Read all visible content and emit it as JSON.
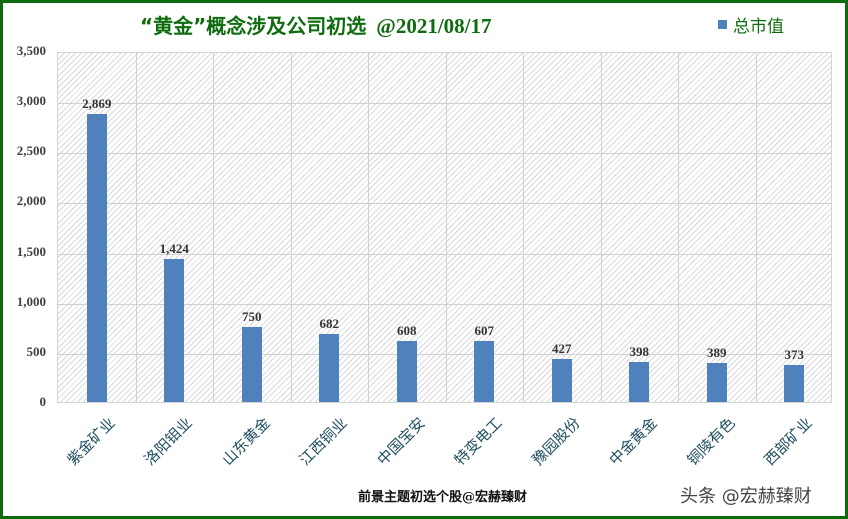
{
  "title": {
    "main": "“黄金”概念涉及公司初选",
    "date": "@2021/08/17"
  },
  "legend": {
    "series_name": "总市值",
    "color": "#4F81BD"
  },
  "footer": {
    "caption": "前景主题初选个股@宏赫臻财",
    "watermark": "头条 @宏赫臻财"
  },
  "colors": {
    "frame": "#0E6B0E",
    "bar": "#4F81BD",
    "title": "#0E6B0E"
  },
  "y_ticks": [
    "3,500",
    "3,000",
    "2,500",
    "2,000",
    "1,500",
    "1,000",
    "500",
    "0"
  ],
  "chart_data": {
    "type": "bar",
    "title": "“黄金”概念涉及公司初选 @2021/08/17",
    "xlabel": "",
    "ylabel": "",
    "ylim": [
      0,
      3500
    ],
    "y_tick_step": 500,
    "grid": true,
    "legend_position": "top-right",
    "categories": [
      "紫金矿业",
      "洛阳钼业",
      "山东黄金",
      "江西铜业",
      "中国宝安",
      "特变电工",
      "豫园股份",
      "中金黄金",
      "铜陵有色",
      "西部矿业"
    ],
    "series": [
      {
        "name": "总市值",
        "values": [
          2869,
          1424,
          750,
          682,
          608,
          607,
          427,
          398,
          389,
          373
        ]
      }
    ],
    "value_labels": [
      "2,869",
      "1,424",
      "750",
      "682",
      "608",
      "607",
      "427",
      "398",
      "389",
      "373"
    ]
  }
}
